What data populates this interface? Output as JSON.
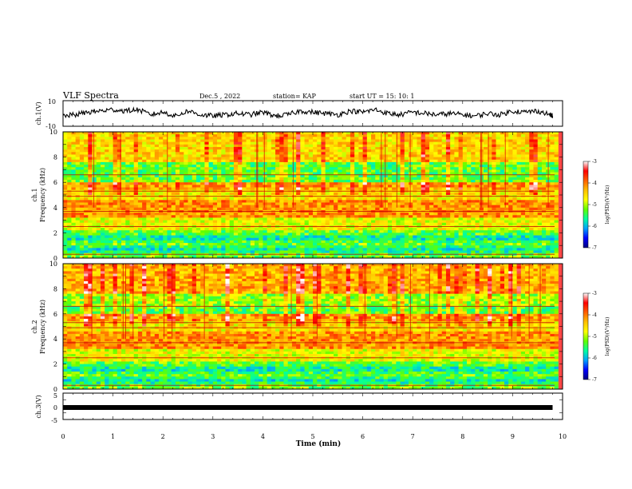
{
  "header": {
    "title": "VLF Spectra",
    "date": "Dec.5 , 2022",
    "station": "station= KAP",
    "start_ut": "start UT = 15: 10: 1"
  },
  "colorbar": {
    "label": "log(PSD)(V²/Hz)",
    "min": -7,
    "max": -3,
    "tick_labels": [
      "-3",
      "-4",
      "-5",
      "-6",
      "-7"
    ],
    "colormap": [
      "#000080",
      "#0000ff",
      "#00a0ff",
      "#00ffa0",
      "#60ff00",
      "#ffff00",
      "#ffc000",
      "#ff6000",
      "#ff0000",
      "#ffffff"
    ]
  },
  "chart_data": [
    {
      "type": "line",
      "panel": "ch1-waveform",
      "ylabel": "ch.1(V)",
      "ylim": [
        -10,
        10
      ],
      "y_tick_labels": [
        "10",
        "-10"
      ],
      "xlim": [
        0,
        10
      ],
      "series": [
        {
          "x": [
            0,
            0.25,
            0.5,
            0.75,
            1.0,
            1.25,
            1.5,
            1.75,
            2.0,
            2.25,
            2.5,
            2.75,
            3.0,
            3.25,
            3.5,
            3.75,
            4.0,
            4.25,
            4.5,
            4.75,
            5.0,
            5.25,
            5.5,
            5.75,
            6.0,
            6.25,
            6.5,
            6.75,
            7.0,
            7.25,
            7.5,
            7.75,
            8.0,
            8.25,
            8.5,
            8.75,
            9.0,
            9.25,
            9.5,
            9.75,
            9.8
          ],
          "y": [
            -2,
            -1,
            1,
            2,
            3,
            2,
            3,
            -1,
            1,
            -2,
            2,
            -1,
            -2,
            -1,
            0,
            -1,
            1,
            -2,
            -1,
            2,
            1,
            0,
            -1,
            2,
            1,
            3,
            0,
            -1,
            1,
            0,
            -1,
            0,
            -1,
            -2,
            0,
            -1,
            2,
            1,
            2,
            -1,
            -2
          ]
        }
      ]
    },
    {
      "type": "heatmap",
      "panel": "ch1-spectrogram",
      "ylabel": "ch.1 Frequency (kHz)",
      "ylim": [
        0,
        10
      ],
      "y_tick_labels": [
        "10",
        "8",
        "6",
        "4",
        "2",
        "0"
      ],
      "xlim": [
        0,
        10
      ],
      "zlim": [
        -7,
        -3
      ]
    },
    {
      "type": "heatmap",
      "panel": "ch2-spectrogram",
      "ylabel": "ch.2 Frequency (kHz)",
      "ylim": [
        0,
        10
      ],
      "y_tick_labels": [
        "10",
        "8",
        "6",
        "4",
        "2",
        "0"
      ],
      "xlim": [
        0,
        10
      ],
      "zlim": [
        -7,
        -3
      ]
    },
    {
      "type": "line",
      "panel": "ch3-waveform",
      "ylabel": "ch.3(V)",
      "ylim": [
        -5,
        5
      ],
      "y_tick_labels": [
        "5",
        "0",
        "-5"
      ],
      "xlim": [
        0,
        10
      ],
      "series": [
        {
          "x": [
            0,
            9.8
          ],
          "y": [
            0,
            0
          ]
        }
      ]
    }
  ],
  "xaxis": {
    "label": "Time (min)",
    "tick_labels": [
      "0",
      "1",
      "2",
      "3",
      "4",
      "5",
      "6",
      "7",
      "8",
      "9",
      "10"
    ]
  }
}
